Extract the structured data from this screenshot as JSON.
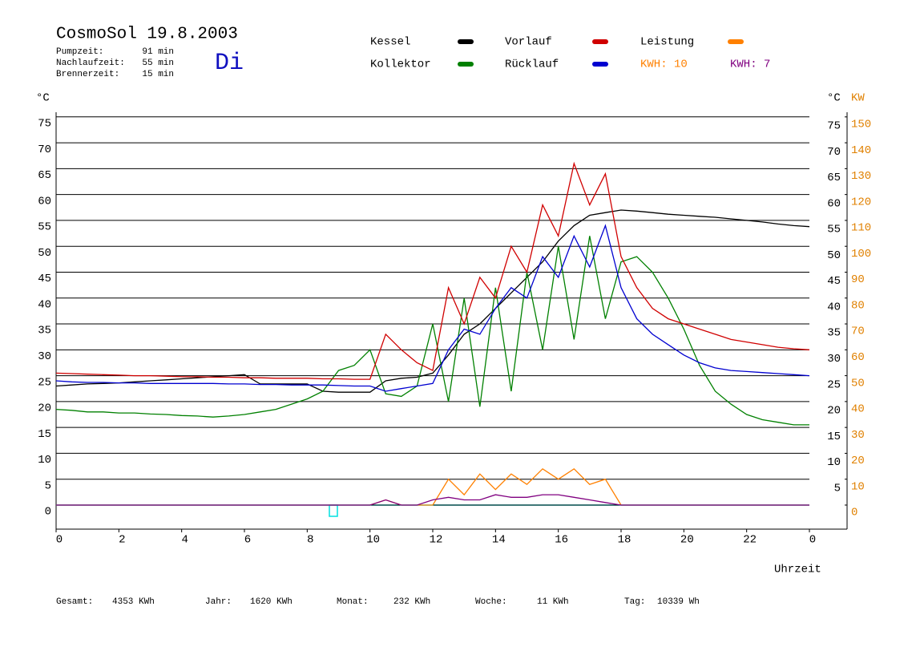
{
  "chart_data": {
    "type": "line",
    "title": "CosmoSol 19.8.2003",
    "weekday": "Di",
    "run_times": [
      {
        "label": "Pumpzeit:",
        "value": "91 min"
      },
      {
        "label": "Nachlaufzeit:",
        "value": "55 min"
      },
      {
        "label": "Brennerzeit:",
        "value": "15 min"
      }
    ],
    "x_label": "Uhrzeit",
    "y_label": "°C",
    "y2_label": "KW",
    "grid": true,
    "x": [
      0,
      0.5,
      1,
      1.5,
      2,
      2.5,
      3,
      3.5,
      4,
      4.5,
      5,
      5.5,
      6,
      6.5,
      7,
      7.5,
      8,
      8.5,
      9,
      9.5,
      10,
      10.5,
      11,
      11.5,
      12,
      12.5,
      13,
      13.5,
      14,
      14.5,
      15,
      15.5,
      16,
      16.5,
      17,
      17.5,
      18,
      18.5,
      19,
      19.5,
      20,
      20.5,
      21,
      21.5,
      22,
      22.5,
      23,
      23.5,
      24
    ],
    "xlim": [
      0,
      25.2
    ],
    "xticks": [
      0,
      2,
      4,
      6,
      8,
      10,
      12,
      14,
      16,
      18,
      20,
      22,
      {
        "value": 24,
        "label": "0"
      }
    ],
    "ylim": [
      -4.65,
      75.9
    ],
    "yticks": [
      0,
      5,
      10,
      15,
      20,
      25,
      30,
      35,
      40,
      45,
      50,
      55,
      60,
      65,
      70,
      75
    ],
    "y2lim": [
      -9.3,
      151.8
    ],
    "y2ticks": [
      0,
      10,
      20,
      30,
      40,
      50,
      60,
      70,
      80,
      90,
      100,
      110,
      120,
      130,
      140,
      150
    ],
    "series": [
      {
        "name": "Kessel",
        "color": "#000000",
        "values": [
          23,
          23.2,
          23.4,
          23.5,
          23.6,
          23.8,
          24,
          24.2,
          24.4,
          24.6,
          24.8,
          25,
          25.2,
          23.4,
          23.4,
          23.4,
          23.4,
          22,
          21.8,
          21.8,
          21.8,
          24,
          24.5,
          24.7,
          25.5,
          29,
          33,
          35,
          38,
          41,
          44,
          47,
          51,
          54,
          56,
          56.5,
          57,
          56.8,
          56.5,
          56.2,
          56,
          55.8,
          55.6,
          55.3,
          55,
          54.7,
          54.3,
          54,
          53.8
        ]
      },
      {
        "name": "Kollektor",
        "color": "#008000",
        "values": [
          18.5,
          18.3,
          18,
          18,
          17.8,
          17.8,
          17.6,
          17.5,
          17.3,
          17.2,
          17,
          17.2,
          17.5,
          18,
          18.5,
          19.5,
          20.5,
          22,
          26,
          27,
          30,
          21.5,
          21,
          23,
          35,
          20,
          40,
          19,
          42,
          22,
          45,
          30,
          50,
          32,
          52,
          36,
          47,
          48,
          45,
          40,
          34,
          27,
          22,
          19.5,
          17.5,
          16.5,
          16,
          15.5,
          15.5
        ]
      },
      {
        "name": "Vorlauf",
        "color": "#d00000",
        "values": [
          25.5,
          25.4,
          25.3,
          25.2,
          25.1,
          25,
          25,
          24.9,
          24.8,
          24.8,
          24.7,
          24.7,
          24.6,
          24.6,
          24.5,
          24.5,
          24.5,
          24.4,
          24.4,
          24.3,
          24.3,
          33,
          30,
          27.5,
          26,
          42,
          35,
          44,
          40,
          50,
          45,
          58,
          52,
          66,
          58,
          64,
          48,
          42,
          38,
          36,
          35,
          34,
          33,
          32,
          31.5,
          31,
          30.5,
          30.2,
          30
        ]
      },
      {
        "name": "Rücklauf",
        "color": "#0000d0",
        "values": [
          24,
          23.8,
          23.7,
          23.7,
          23.6,
          23.6,
          23.5,
          23.5,
          23.5,
          23.5,
          23.5,
          23.4,
          23.4,
          23.3,
          23.3,
          23.2,
          23.2,
          23.2,
          23.1,
          23,
          23,
          22,
          22.5,
          23,
          23.5,
          30,
          34,
          33,
          38,
          42,
          40,
          48,
          44,
          52,
          46,
          54,
          42,
          36,
          33,
          31,
          29,
          27.5,
          26.5,
          26,
          25.8,
          25.6,
          25.4,
          25.2,
          25
        ]
      },
      {
        "name": "Leistung",
        "color": "#ff8000",
        "axis": "y2",
        "energy_label": "KWH: 10",
        "values": [
          0,
          0,
          0,
          0,
          0,
          0,
          0,
          0,
          0,
          0,
          0,
          0,
          0,
          0,
          0,
          0,
          0,
          0,
          0,
          0,
          0,
          2,
          0,
          0,
          0,
          10,
          4,
          12,
          6,
          12,
          8,
          14,
          10,
          14,
          8,
          10,
          0,
          0,
          0,
          0,
          0,
          0,
          0,
          0,
          0,
          0,
          0,
          0,
          0
        ]
      },
      {
        "name": "KWH: 7",
        "color": "#800080",
        "axis": "y2",
        "values": [
          0,
          0,
          0,
          0,
          0,
          0,
          0,
          0,
          0,
          0,
          0,
          0,
          0,
          0,
          0,
          0,
          0,
          0,
          0,
          0,
          0,
          2,
          0,
          0,
          2,
          3,
          2,
          2,
          4,
          3,
          3,
          4,
          4,
          3,
          2,
          1,
          0,
          0,
          0,
          0,
          0,
          0,
          0,
          0,
          0,
          0,
          0,
          0,
          0
        ]
      }
    ],
    "totals": [
      {
        "label": "Gesamt:",
        "value": "4353 KWh"
      },
      {
        "label": "Jahr:",
        "value": "1620 KWh"
      },
      {
        "label": "Monat:",
        "value": "232 KWh"
      },
      {
        "label": "Woche:",
        "value": "11 KWh"
      },
      {
        "label": "Tag:",
        "value": "10339 Wh"
      }
    ]
  }
}
